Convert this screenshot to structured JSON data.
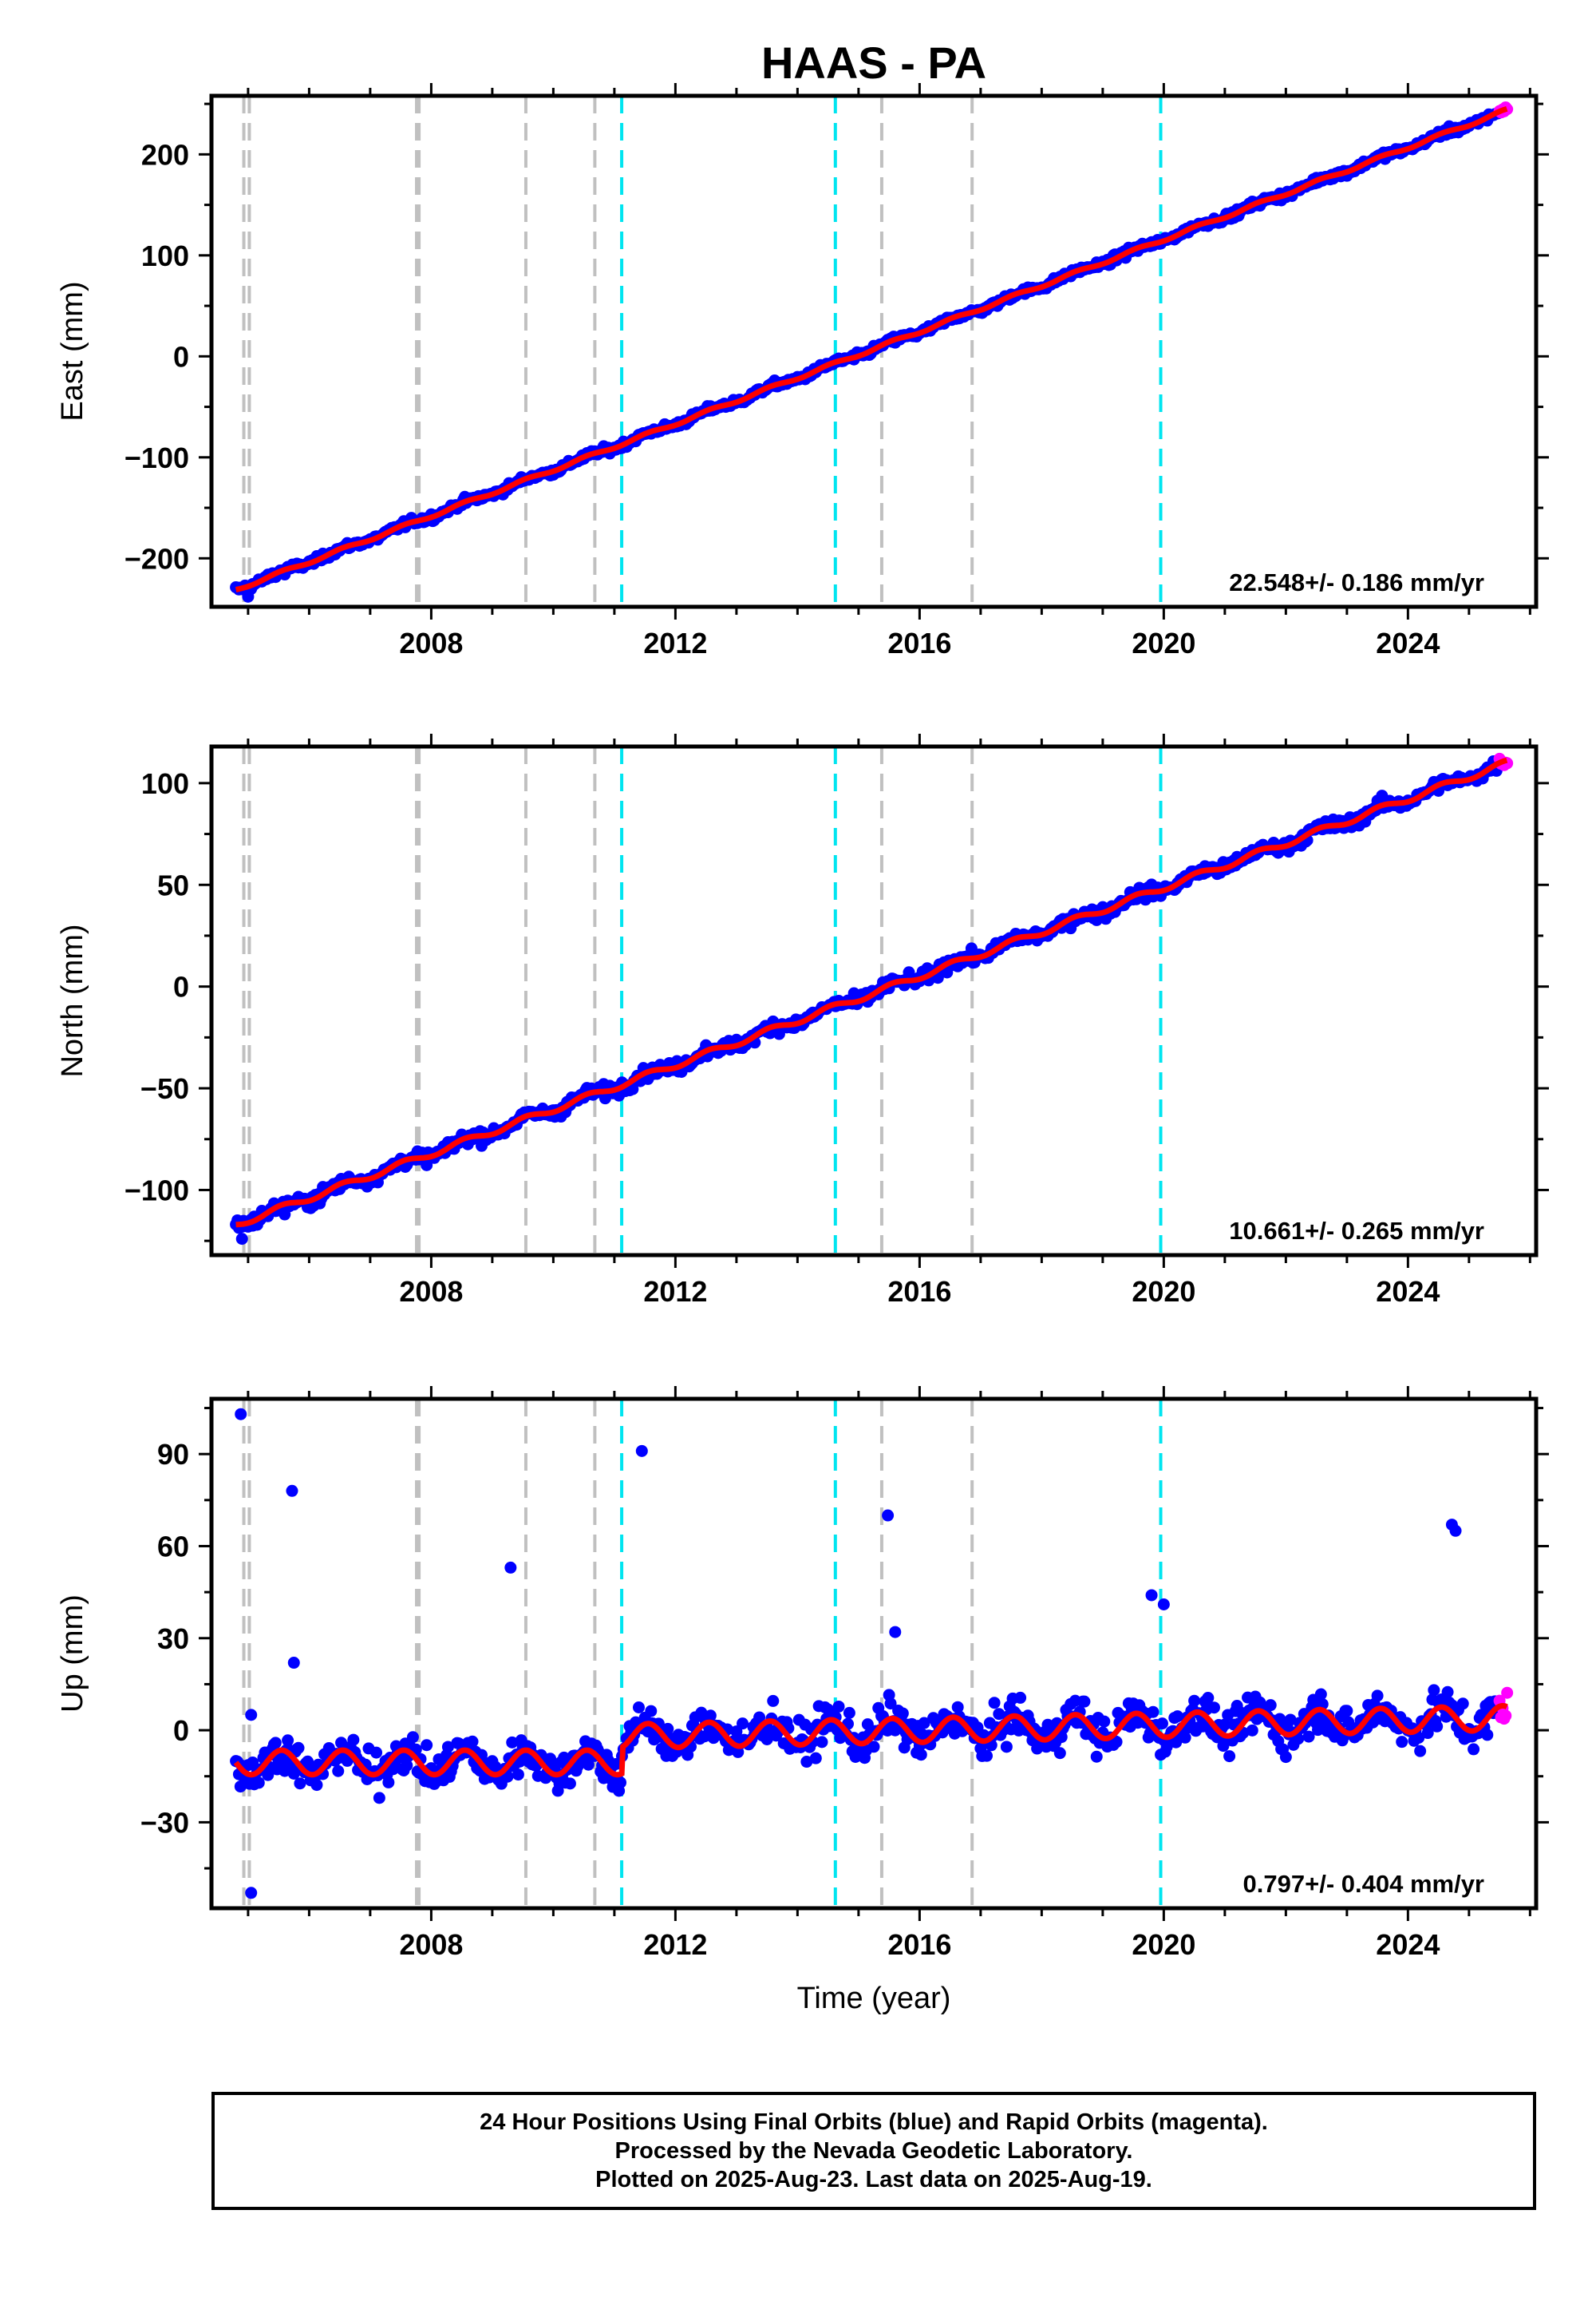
{
  "title": "HAAS - PA",
  "colors": {
    "final_orbits": "#0000ff",
    "rapid_orbits": "#ff00ff",
    "model": "#ff0000",
    "equipment_change": "#c0c0c0",
    "earthquake": "#00e5f0"
  },
  "xlabel": "Time (year)",
  "xticks": [
    "2008",
    "2012",
    "2016",
    "2020",
    "2024"
  ],
  "xlim": [
    2004.4,
    2026.1
  ],
  "event_lines": {
    "gray": [
      2004.93,
      2005.02,
      2007.76,
      2007.8,
      2009.55,
      2010.68,
      2015.38,
      2016.86
    ],
    "cyan": [
      2011.12,
      2014.62,
      2019.95
    ]
  },
  "data_span": [
    2004.8,
    2025.63
  ],
  "rapid_start": 2025.5,
  "footer": {
    "line1": "24 Hour Positions Using Final Orbits (blue) and Rapid Orbits (magenta).",
    "line2": "Processed by the Nevada Geodetic Laboratory.",
    "line3": "Plotted on 2025-Aug-23. Last data on 2025-Aug-19."
  },
  "chart_data": [
    {
      "type": "scatter",
      "panel": "east",
      "ylabel": "East (mm)",
      "ylim": [
        -248,
        258
      ],
      "yticks": [
        -200,
        -100,
        0,
        100,
        200
      ],
      "rate_label": "22.548+/- 0.186 mm/yr",
      "trend": {
        "x": [
          2004.8,
          2025.63
        ],
        "y": [
          -231,
          244
        ]
      },
      "seasonal_amp": 1.5,
      "noise_sd": 2.5,
      "outliers": {
        "x": [
          2005.0,
          2005.6
        ],
        "y": [
          -238,
          -216
        ]
      }
    },
    {
      "type": "scatter",
      "panel": "north",
      "ylabel": "North (mm)",
      "ylim": [
        -132,
        118
      ],
      "yticks": [
        -100,
        -50,
        0,
        50,
        100
      ],
      "rate_label": "10.661+/- 0.265 mm/yr",
      "trend": {
        "x": [
          2004.8,
          2025.63
        ],
        "y": [
          -117,
          110
        ]
      },
      "seasonal_amp": 1.5,
      "noise_sd": 2.2,
      "outliers": {
        "x": [
          2004.9,
          2005.6
        ],
        "y": [
          -124,
          -112
        ]
      }
    },
    {
      "type": "scatter",
      "panel": "up",
      "ylabel": "Up (mm)",
      "ylim": [
        -58,
        108
      ],
      "yticks": [
        -30,
        0,
        30,
        60,
        90
      ],
      "rate_label": "0.797+/- 0.404 mm/yr",
      "trend": {
        "x": [
          2004.8,
          2011.12,
          2011.12,
          2025.63
        ],
        "y": [
          -10.5,
          -10.5,
          -2,
          4
        ]
      },
      "seasonal_amp": 4,
      "noise_sd": 4.5,
      "outliers": {
        "x": [
          2004.88,
          2005.05,
          2005.72,
          2005.75,
          2009.3,
          2011.45,
          2015.48,
          2015.6,
          2019.8,
          2020.0,
          2024.72,
          2024.78,
          2005.05
        ],
        "y": [
          103,
          5,
          78,
          22,
          53,
          91,
          70,
          32,
          44,
          41,
          67,
          65,
          -53
        ]
      }
    }
  ]
}
